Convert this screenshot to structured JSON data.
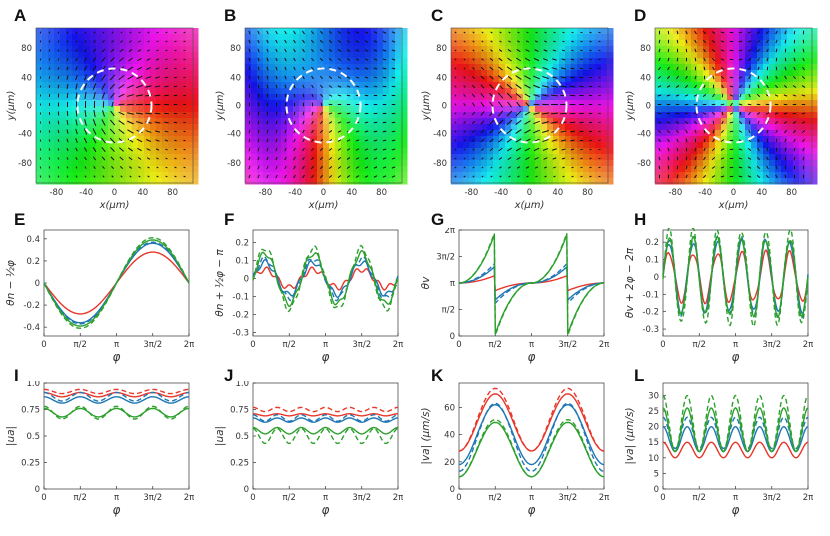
{
  "figure": {
    "panel_letters": [
      "A",
      "B",
      "C",
      "D",
      "E",
      "F",
      "G",
      "H",
      "I",
      "J",
      "K",
      "L"
    ]
  },
  "colors": {
    "red": "#e8372a",
    "blue": "#1f77b4",
    "green": "#2ca02c",
    "axis": "#333333",
    "dash_circle": "#ffffff"
  },
  "field_maps": [
    {
      "letter": "A",
      "type": "field",
      "xlabel": "x(μm)",
      "ylabel": "y(μm)",
      "xticks": [
        "-80",
        "-40",
        "0",
        "40",
        "80"
      ],
      "yticks": [
        "80",
        "40",
        "0",
        "-40",
        "-80"
      ],
      "defects": "+1/2 centered",
      "hue_offset": 0
    },
    {
      "letter": "B",
      "type": "field",
      "xlabel": "x(μm)",
      "ylabel": "y(μm)",
      "xticks": [
        "-80",
        "-40",
        "0",
        "40",
        "80"
      ],
      "yticks": [
        "80",
        "40",
        "0",
        "-40",
        "-80"
      ],
      "defects": "-1/2 surrounding",
      "hue_offset": 120
    },
    {
      "letter": "C",
      "type": "field",
      "xlabel": "x(μm)",
      "ylabel": "y(μm)",
      "xticks": [
        "-80",
        "-40",
        "0",
        "40",
        "80"
      ],
      "yticks": [
        "80",
        "40",
        "0",
        "-40",
        "-80"
      ],
      "defects": "velocity +1",
      "hue_offset": 300
    },
    {
      "letter": "D",
      "type": "field",
      "xlabel": "x(μm)",
      "ylabel": "y(μm)",
      "xticks": [
        "-80",
        "-40",
        "0",
        "40",
        "80"
      ],
      "yticks": [
        "80",
        "40",
        "0",
        "-40",
        "-80"
      ],
      "defects": "velocity -2",
      "hue_offset": 30
    }
  ],
  "chart_data": [
    {
      "letter": "E",
      "type": "line",
      "xlabel": "φ",
      "ylabel": "θn − ½φ",
      "xticks": [
        "0",
        "π/2",
        "π",
        "3π/2",
        "2π"
      ],
      "yticks": [
        "-0.4",
        "-0.2",
        "0",
        "0.2",
        "0.4"
      ],
      "ylim": [
        -0.48,
        0.48
      ],
      "series": [
        {
          "name": "red",
          "model": "sin",
          "amp": -0.28,
          "freq": 1,
          "dashed": false
        },
        {
          "name": "blue",
          "model": "sin",
          "amp": -0.36,
          "freq": 1,
          "dashed": false
        },
        {
          "name": "blue",
          "model": "sin",
          "amp": -0.37,
          "freq": 1,
          "dashed": true
        },
        {
          "name": "green",
          "model": "sin",
          "amp": -0.39,
          "freq": 1,
          "dashed": false
        },
        {
          "name": "green",
          "model": "sin",
          "amp": -0.41,
          "freq": 1,
          "dashed": true
        }
      ]
    },
    {
      "letter": "F",
      "type": "line",
      "xlabel": "φ",
      "ylabel": "θn + ½φ − π",
      "xticks": [
        "0",
        "π/2",
        "π",
        "3π/2",
        "2π"
      ],
      "yticks": [
        "-0.3",
        "-0.2",
        "-0.1",
        "0",
        "0.1",
        "0.2"
      ],
      "ylim": [
        -0.32,
        0.27
      ],
      "series": [
        {
          "name": "red",
          "model": "sin",
          "amp": 0.05,
          "freq": 3,
          "dashed": false
        },
        {
          "name": "blue",
          "model": "sin",
          "amp": 0.09,
          "freq": 3,
          "dashed": false
        },
        {
          "name": "blue",
          "model": "sin",
          "amp": 0.11,
          "freq": 3,
          "dashed": true
        },
        {
          "name": "green",
          "model": "sin",
          "amp": 0.14,
          "freq": 3,
          "dashed": false
        },
        {
          "name": "green",
          "model": "sin",
          "amp": 0.17,
          "freq": 3,
          "dashed": true
        }
      ]
    },
    {
      "letter": "G",
      "type": "line",
      "xlabel": "φ",
      "ylabel": "θv",
      "xticks": [
        "0",
        "π/2",
        "π",
        "3π/2",
        "2π"
      ],
      "yticks": [
        "0",
        "π/2",
        "π",
        "3π/2",
        "2π"
      ],
      "ylim": [
        0,
        6.2832
      ],
      "series": [
        {
          "name": "red",
          "model": "saw",
          "amp": 0.45,
          "freq": 1,
          "dashed": false
        },
        {
          "name": "blue",
          "model": "saw",
          "amp": 1.0,
          "freq": 1,
          "dashed": false
        },
        {
          "name": "blue",
          "model": "saw",
          "amp": 1.2,
          "freq": 1,
          "dashed": true
        },
        {
          "name": "green",
          "model": "saw",
          "amp": 3.0,
          "freq": 1,
          "dashed": false
        },
        {
          "name": "green",
          "model": "saw",
          "amp": 3.1,
          "freq": 1,
          "dashed": true
        }
      ]
    },
    {
      "letter": "H",
      "type": "line",
      "xlabel": "φ",
      "ylabel": "θv + 2φ − 2π",
      "xticks": [
        "0",
        "π/2",
        "π",
        "3π/2",
        "2π"
      ],
      "yticks": [
        "-0.3",
        "-0.2",
        "-0.1",
        "0",
        "0.1",
        "0.2"
      ],
      "ylim": [
        -0.34,
        0.27
      ],
      "series": [
        {
          "name": "red",
          "model": "sin",
          "amp": 0.14,
          "freq": 6,
          "dashed": false
        },
        {
          "name": "blue",
          "model": "sin",
          "amp": 0.2,
          "freq": 6,
          "dashed": false
        },
        {
          "name": "blue",
          "model": "sin",
          "amp": 0.22,
          "freq": 6,
          "dashed": true
        },
        {
          "name": "green",
          "model": "sin",
          "amp": 0.22,
          "freq": 6,
          "dashed": false
        },
        {
          "name": "green",
          "model": "sin",
          "amp": 0.27,
          "freq": 6,
          "dashed": true
        }
      ]
    },
    {
      "letter": "I",
      "type": "line",
      "xlabel": "φ",
      "ylabel": "|ua|",
      "xticks": [
        "0",
        "π/2",
        "π",
        "3π/2",
        "2π"
      ],
      "yticks": [
        "0",
        "0.25",
        "0.5",
        "0.75",
        "1.0"
      ],
      "ylim": [
        0,
        1.0
      ],
      "series": [
        {
          "name": "red",
          "model": "cos",
          "base": 0.89,
          "amp": 0.02,
          "freq": 4,
          "dashed": false
        },
        {
          "name": "red",
          "model": "cos",
          "base": 0.92,
          "amp": 0.02,
          "freq": 4,
          "dashed": true
        },
        {
          "name": "blue",
          "model": "cos",
          "base": 0.84,
          "amp": 0.03,
          "freq": 4,
          "dashed": false
        },
        {
          "name": "blue",
          "model": "cos",
          "base": 0.87,
          "amp": 0.04,
          "freq": 4,
          "dashed": true
        },
        {
          "name": "green",
          "model": "cos",
          "base": 0.72,
          "amp": 0.04,
          "freq": 4,
          "dashed": false
        },
        {
          "name": "green",
          "model": "cos",
          "base": 0.72,
          "amp": 0.06,
          "freq": 4,
          "dashed": true
        }
      ]
    },
    {
      "letter": "J",
      "type": "line",
      "xlabel": "φ",
      "ylabel": "|ua|",
      "xticks": [
        "0",
        "π/2",
        "π",
        "3π/2",
        "2π"
      ],
      "yticks": [
        "0",
        "0.25",
        "0.5",
        "0.75",
        "1.0"
      ],
      "ylim": [
        0,
        1.0
      ],
      "series": [
        {
          "name": "red",
          "model": "cos",
          "base": 0.7,
          "amp": 0.01,
          "freq": 6,
          "dashed": false
        },
        {
          "name": "red",
          "model": "cos",
          "base": 0.75,
          "amp": 0.02,
          "freq": 6,
          "dashed": true
        },
        {
          "name": "blue",
          "model": "cos",
          "base": 0.65,
          "amp": 0.02,
          "freq": 6,
          "dashed": false
        },
        {
          "name": "blue",
          "model": "cos",
          "base": 0.67,
          "amp": 0.03,
          "freq": 6,
          "dashed": true
        },
        {
          "name": "green",
          "model": "cos",
          "base": 0.55,
          "amp": 0.03,
          "freq": 6,
          "dashed": false
        },
        {
          "name": "green",
          "model": "cos",
          "base": 0.5,
          "amp": 0.07,
          "freq": 6,
          "dashed": true
        }
      ]
    },
    {
      "letter": "K",
      "type": "line",
      "xlabel": "φ",
      "ylabel": "|va| (μm/s)",
      "xticks": [
        "0",
        "π/2",
        "π",
        "3π/2",
        "2π"
      ],
      "yticks": [
        "0",
        "20",
        "40",
        "60"
      ],
      "ylim": [
        0,
        78
      ],
      "series": [
        {
          "name": "red",
          "model": "negcos2",
          "base": 49,
          "amp": 21,
          "freq": 2,
          "dashed": false
        },
        {
          "name": "red",
          "model": "negcos2",
          "base": 51,
          "amp": 23,
          "freq": 2,
          "dashed": true
        },
        {
          "name": "blue",
          "model": "negcos2",
          "base": 40,
          "amp": 22,
          "freq": 2,
          "dashed": false
        },
        {
          "name": "blue",
          "model": "negcos2",
          "base": 38,
          "amp": 25,
          "freq": 2,
          "dashed": true
        },
        {
          "name": "green",
          "model": "negcos2",
          "base": 29,
          "amp": 20,
          "freq": 2,
          "dashed": false
        },
        {
          "name": "green",
          "model": "negcos2",
          "base": 30,
          "amp": 21,
          "freq": 2,
          "dashed": true
        }
      ]
    },
    {
      "letter": "L",
      "type": "line",
      "xlabel": "φ",
      "ylabel": "|va| (μm/s)",
      "xticks": [
        "0",
        "π/2",
        "π",
        "3π/2",
        "2π"
      ],
      "yticks": [
        "0",
        "5",
        "10",
        "15",
        "20",
        "25",
        "30"
      ],
      "ylim": [
        0,
        34
      ],
      "series": [
        {
          "name": "red",
          "model": "cos",
          "base": 12.5,
          "amp": 2.5,
          "freq": 6,
          "dashed": false
        },
        {
          "name": "blue",
          "model": "cos",
          "base": 16,
          "amp": 4,
          "freq": 6,
          "dashed": false
        },
        {
          "name": "blue",
          "model": "cos",
          "base": 18,
          "amp": 5,
          "freq": 6,
          "dashed": true
        },
        {
          "name": "green",
          "model": "cos",
          "base": 19,
          "amp": 7,
          "freq": 6,
          "dashed": false
        },
        {
          "name": "green",
          "model": "cos",
          "base": 21,
          "amp": 9,
          "freq": 6,
          "dashed": true
        }
      ]
    }
  ]
}
